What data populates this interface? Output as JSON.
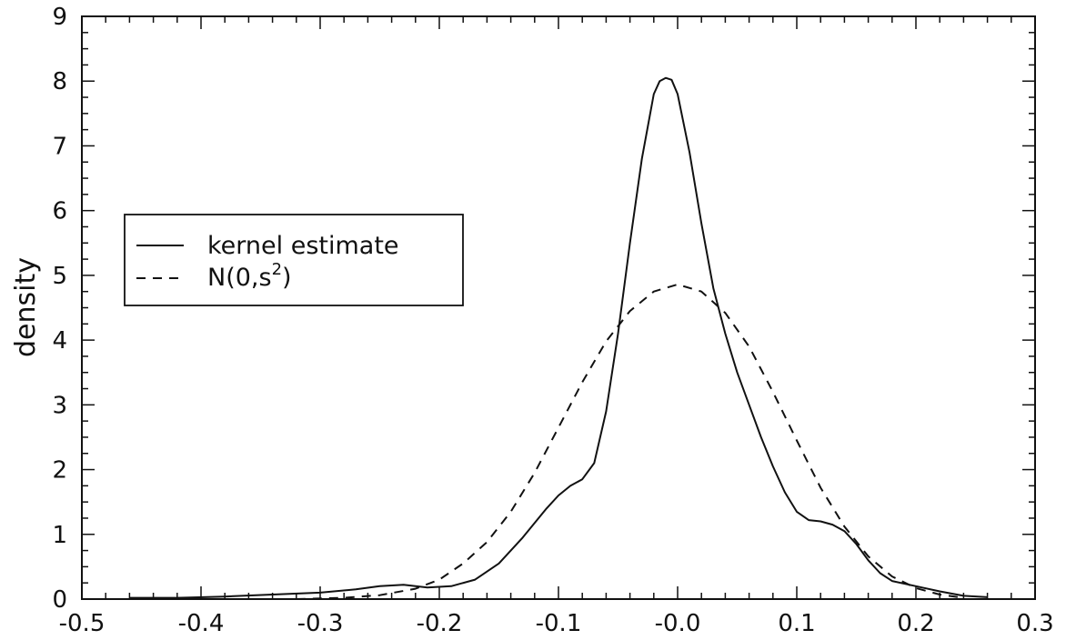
{
  "chart_data": {
    "type": "line",
    "ylabel": "density",
    "xlabel": "",
    "xlim": [
      -0.5,
      0.3
    ],
    "ylim": [
      0,
      9
    ],
    "xticks": [
      -0.5,
      -0.4,
      -0.3,
      -0.2,
      -0.1,
      0.0,
      0.1,
      0.2,
      0.3
    ],
    "xtick_labels": [
      "-0.5",
      "-0.4",
      "-0.3",
      "-0.2",
      "-0.1",
      "-0.0",
      "0.1",
      "0.2",
      "0.3"
    ],
    "yticks": [
      0,
      1,
      2,
      3,
      4,
      5,
      6,
      7,
      8,
      9
    ],
    "ytick_labels": [
      "0",
      "1",
      "2",
      "3",
      "4",
      "5",
      "6",
      "7",
      "8",
      "9"
    ],
    "grid": false,
    "legend_position": "left-middle",
    "series": [
      {
        "name": "kernel estimate",
        "style": "solid",
        "x": [
          -0.46,
          -0.42,
          -0.38,
          -0.34,
          -0.3,
          -0.27,
          -0.25,
          -0.23,
          -0.21,
          -0.19,
          -0.17,
          -0.15,
          -0.13,
          -0.11,
          -0.1,
          -0.09,
          -0.08,
          -0.07,
          -0.06,
          -0.05,
          -0.04,
          -0.03,
          -0.02,
          -0.015,
          -0.01,
          -0.005,
          0.0,
          0.01,
          0.02,
          0.03,
          0.04,
          0.05,
          0.06,
          0.07,
          0.08,
          0.09,
          0.1,
          0.11,
          0.12,
          0.13,
          0.14,
          0.15,
          0.16,
          0.17,
          0.18,
          0.2,
          0.22,
          0.24,
          0.26
        ],
        "y": [
          0.02,
          0.02,
          0.04,
          0.07,
          0.1,
          0.15,
          0.2,
          0.22,
          0.18,
          0.2,
          0.3,
          0.55,
          0.95,
          1.4,
          1.6,
          1.75,
          1.85,
          2.1,
          2.9,
          4.1,
          5.5,
          6.8,
          7.8,
          8.0,
          8.05,
          8.02,
          7.8,
          6.9,
          5.8,
          4.8,
          4.1,
          3.5,
          3.0,
          2.5,
          2.05,
          1.65,
          1.35,
          1.22,
          1.2,
          1.15,
          1.05,
          0.85,
          0.6,
          0.4,
          0.28,
          0.2,
          0.12,
          0.05,
          0.03
        ]
      },
      {
        "name": "N(0,s²)",
        "style": "dashed",
        "x": [
          -0.32,
          -0.28,
          -0.25,
          -0.22,
          -0.2,
          -0.18,
          -0.16,
          -0.14,
          -0.12,
          -0.1,
          -0.08,
          -0.06,
          -0.04,
          -0.02,
          0.0,
          0.02,
          0.04,
          0.06,
          0.08,
          0.1,
          0.12,
          0.14,
          0.16,
          0.18,
          0.2,
          0.22,
          0.24
        ],
        "y": [
          0.0,
          0.02,
          0.06,
          0.16,
          0.3,
          0.55,
          0.88,
          1.35,
          1.95,
          2.65,
          3.35,
          3.98,
          4.45,
          4.75,
          4.86,
          4.75,
          4.42,
          3.9,
          3.2,
          2.45,
          1.72,
          1.12,
          0.66,
          0.35,
          0.17,
          0.07,
          0.02
        ]
      }
    ]
  },
  "legend": {
    "items": [
      {
        "text": "kernel estimate",
        "style": "solid"
      },
      {
        "text_main": "N(0,s",
        "text_sup": "2",
        "text_close": ")",
        "style": "dashed"
      }
    ]
  }
}
